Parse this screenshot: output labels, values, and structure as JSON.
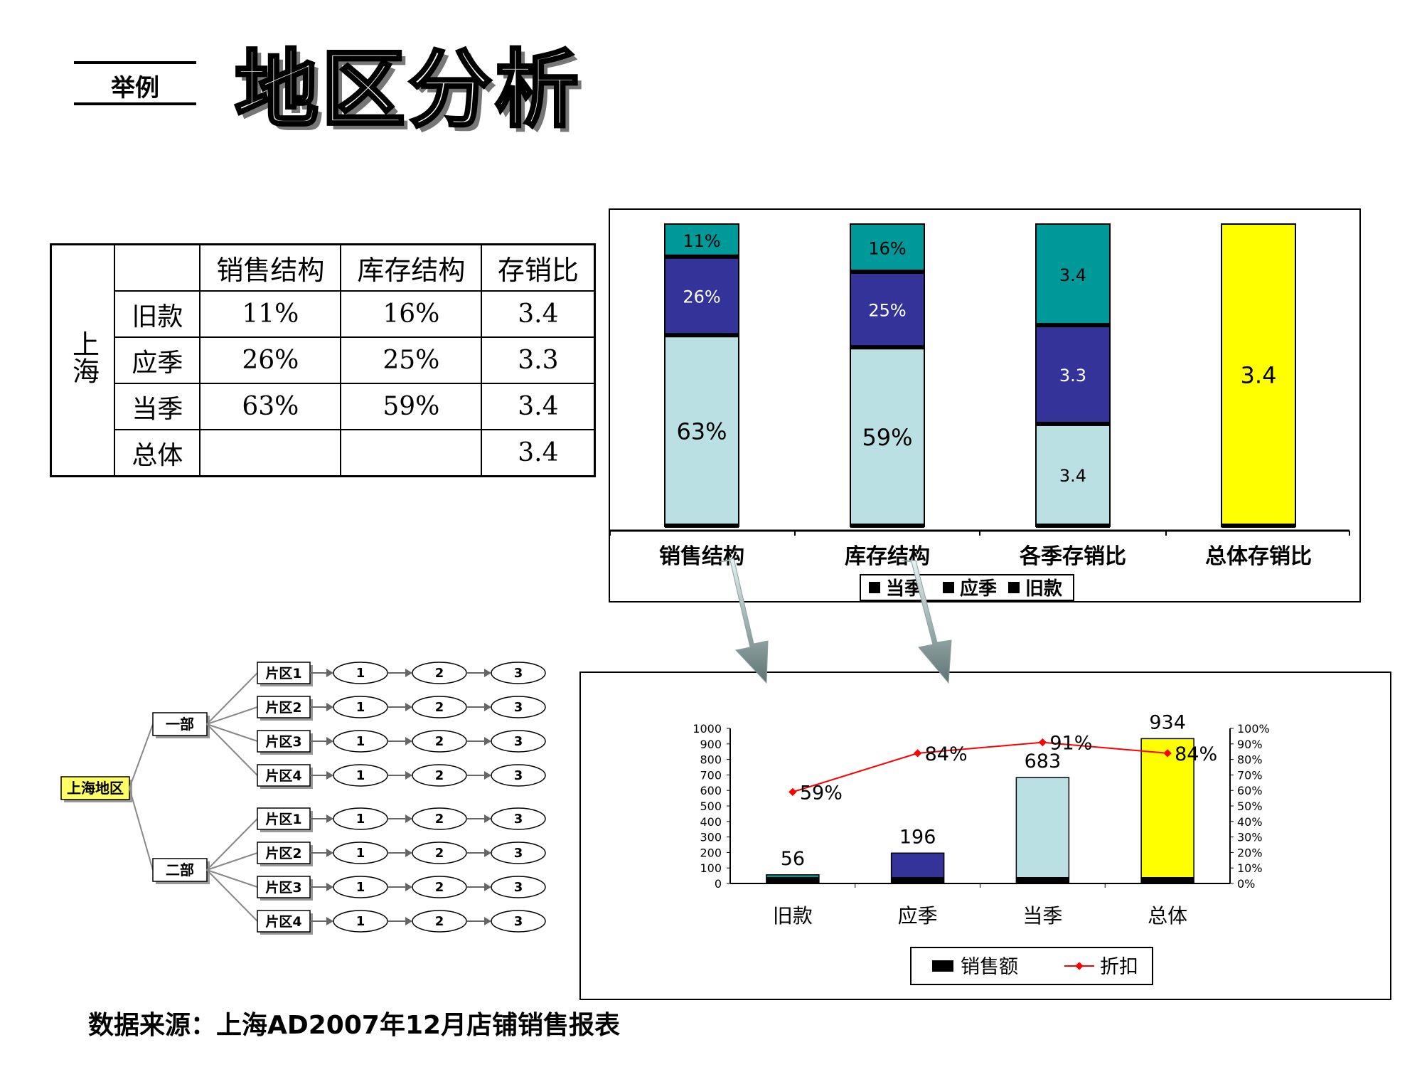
{
  "tag": "举例",
  "title": "地区分析",
  "table": {
    "region": "上海",
    "headers": [
      "销售结构",
      "库存结构",
      "存销比"
    ],
    "rows": [
      {
        "label": "旧款",
        "sales": "11%",
        "stock": "16%",
        "ratio": "3.4"
      },
      {
        "label": "应季",
        "sales": "26%",
        "stock": "25%",
        "ratio": "3.3"
      },
      {
        "label": "当季",
        "sales": "63%",
        "stock": "59%",
        "ratio": "3.4"
      },
      {
        "label": "总体",
        "sales": "",
        "stock": "",
        "ratio": "3.4"
      }
    ]
  },
  "org": {
    "root": "上海地区",
    "departments": [
      {
        "name": "一部",
        "zones": [
          "片区1",
          "片区2",
          "片区3",
          "片区4"
        ]
      },
      {
        "name": "二部",
        "zones": [
          "片区1",
          "片区2",
          "片区3",
          "片区4"
        ]
      }
    ],
    "steps": [
      "1",
      "2",
      "3"
    ]
  },
  "colors": {
    "teal": "#009999",
    "navy": "#333399",
    "lightblue": "#BBE0E3",
    "yellow": "#FFFF00",
    "line": "#FF0000"
  },
  "source": "数据来源：上海AD2007年12月店铺销售报表",
  "chart_data": [
    {
      "type": "bar",
      "stacked": true,
      "categories": [
        "销售结构",
        "库存结构",
        "各季存销比",
        "总体存销比"
      ],
      "segments": [
        {
          "category": "销售结构",
          "label": "63%",
          "value": 63,
          "color": "#BBE0E3"
        },
        {
          "category": "销售结构",
          "label": "26%",
          "value": 26,
          "color": "#333399"
        },
        {
          "category": "销售结构",
          "label": "11%",
          "value": 11,
          "color": "#009999"
        },
        {
          "category": "库存结构",
          "label": "59%",
          "value": 59,
          "color": "#BBE0E3"
        },
        {
          "category": "库存结构",
          "label": "25%",
          "value": 25,
          "color": "#333399"
        },
        {
          "category": "库存结构",
          "label": "16%",
          "value": 16,
          "color": "#009999"
        },
        {
          "category": "各季存销比",
          "label": "3.4",
          "value": 3.4,
          "color": "#BBE0E3"
        },
        {
          "category": "各季存销比",
          "label": "3.3",
          "value": 3.3,
          "color": "#333399"
        },
        {
          "category": "各季存销比",
          "label": "3.4",
          "value": 3.4,
          "color": "#009999"
        },
        {
          "category": "总体存销比",
          "label": "3.4",
          "value": 3.4,
          "color": "#FFFF00"
        }
      ],
      "legend": [
        "当季",
        "应季",
        "旧款"
      ],
      "legend_position": "bottom"
    },
    {
      "type": "bar+line",
      "categories": [
        "旧款",
        "应季",
        "当季",
        "总体"
      ],
      "series": [
        {
          "name": "销售额",
          "values": [
            56,
            196,
            683,
            934
          ],
          "colors": [
            "#009999",
            "#333399",
            "#BBE0E3",
            "#FFFF00"
          ]
        },
        {
          "name": "折扣",
          "values": [
            0.59,
            0.84,
            0.91,
            0.84
          ],
          "labels": [
            "59%",
            "84%",
            "91%",
            "84%"
          ],
          "color": "#FF0000",
          "axis": "right"
        }
      ],
      "value_labels": [
        "56",
        "196",
        "683",
        "934"
      ],
      "ylim": [
        0,
        1000
      ],
      "yticks": [
        "0",
        "100",
        "200",
        "300",
        "400",
        "500",
        "600",
        "700",
        "800",
        "900",
        "1000"
      ],
      "y2lim": [
        0,
        1
      ],
      "y2ticks": [
        "0%",
        "10%",
        "20%",
        "30%",
        "40%",
        "50%",
        "60%",
        "70%",
        "80%",
        "90%",
        "100%"
      ],
      "legend_position": "bottom"
    }
  ]
}
